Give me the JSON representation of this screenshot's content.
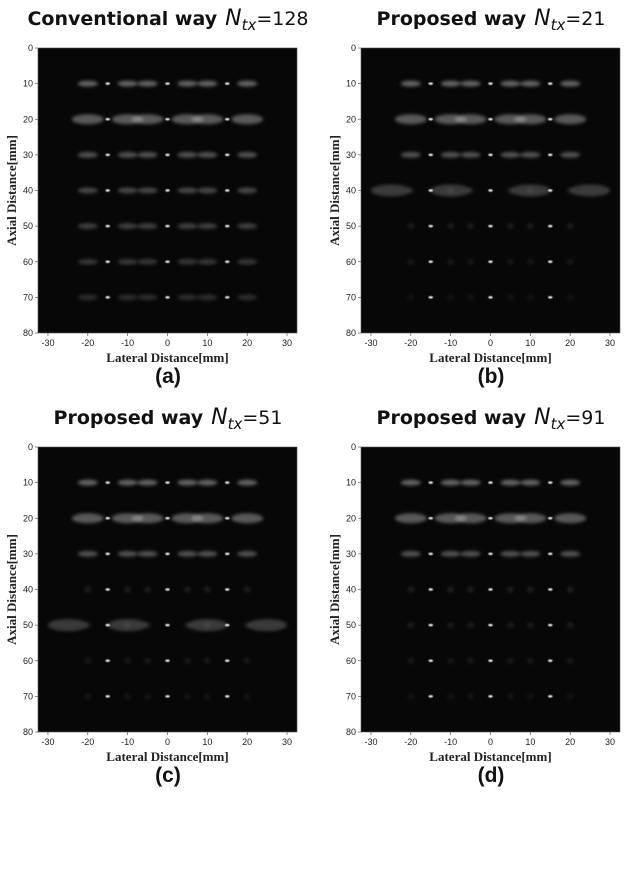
{
  "panels": [
    {
      "title": "Conventional way",
      "n_symbol": "N",
      "n_subscript": "tx",
      "n_text": "=128",
      "x_label": "Lateral Distance[mm]",
      "y_label": "Axial Distance[mm]",
      "xlim": [
        -32.5,
        32.5
      ],
      "ylim": [
        0,
        80
      ],
      "xticks": [
        -30,
        -20,
        -10,
        0,
        10,
        20,
        30
      ],
      "yticks": [
        0,
        10,
        20,
        30,
        40,
        50,
        60,
        70,
        80
      ],
      "caption": "(a)"
    },
    {
      "title": "Proposed way",
      "n_symbol": "N",
      "n_subscript": "tx",
      "n_text": "=21",
      "x_label": "Lateral Distance[mm]",
      "y_label": "Axial Distance[mm]",
      "xlim": [
        -32.5,
        32.5
      ],
      "ylim": [
        0,
        80
      ],
      "xticks": [
        -30,
        -20,
        -10,
        0,
        10,
        20,
        30
      ],
      "yticks": [
        0,
        10,
        20,
        30,
        40,
        50,
        60,
        70,
        80
      ],
      "caption": "(b)"
    },
    {
      "title": "Proposed way",
      "n_symbol": "N",
      "n_subscript": "tx",
      "n_text": "=51",
      "x_label": "Lateral Distance[mm]",
      "y_label": "Axial Distance[mm]",
      "xlim": [
        -32.5,
        32.5
      ],
      "ylim": [
        0,
        80
      ],
      "xticks": [
        -30,
        -20,
        -10,
        0,
        10,
        20,
        30
      ],
      "yticks": [
        0,
        10,
        20,
        30,
        40,
        50,
        60,
        70,
        80
      ],
      "caption": "(c)"
    },
    {
      "title": "Proposed way",
      "n_symbol": "N",
      "n_subscript": "tx",
      "n_text": "=91",
      "x_label": "Lateral Distance[mm]",
      "y_label": "Axial Distance[mm]",
      "xlim": [
        -32.5,
        32.5
      ],
      "ylim": [
        0,
        80
      ],
      "xticks": [
        -30,
        -20,
        -10,
        0,
        10,
        20,
        30
      ],
      "yticks": [
        0,
        10,
        20,
        30,
        40,
        50,
        60,
        70,
        80
      ],
      "caption": "(d)"
    }
  ]
}
